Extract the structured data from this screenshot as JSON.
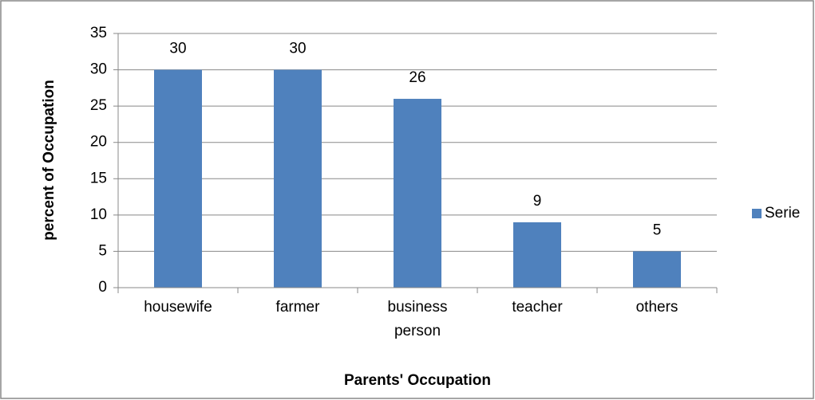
{
  "chart_data": {
    "type": "bar",
    "categories": [
      "housewife",
      "farmer",
      "business person",
      "teacher",
      "others"
    ],
    "series": [
      {
        "name": "Serie",
        "color": "#4f81bd",
        "values": [
          30,
          30,
          26,
          9,
          5
        ]
      }
    ],
    "ylim": [
      0,
      35
    ],
    "yticks": [
      0,
      5,
      10,
      15,
      20,
      25,
      30,
      35
    ],
    "grid": true,
    "xlabel": "Parents' Occupation",
    "ylabel": "percent of Occupation",
    "legend": "right"
  }
}
